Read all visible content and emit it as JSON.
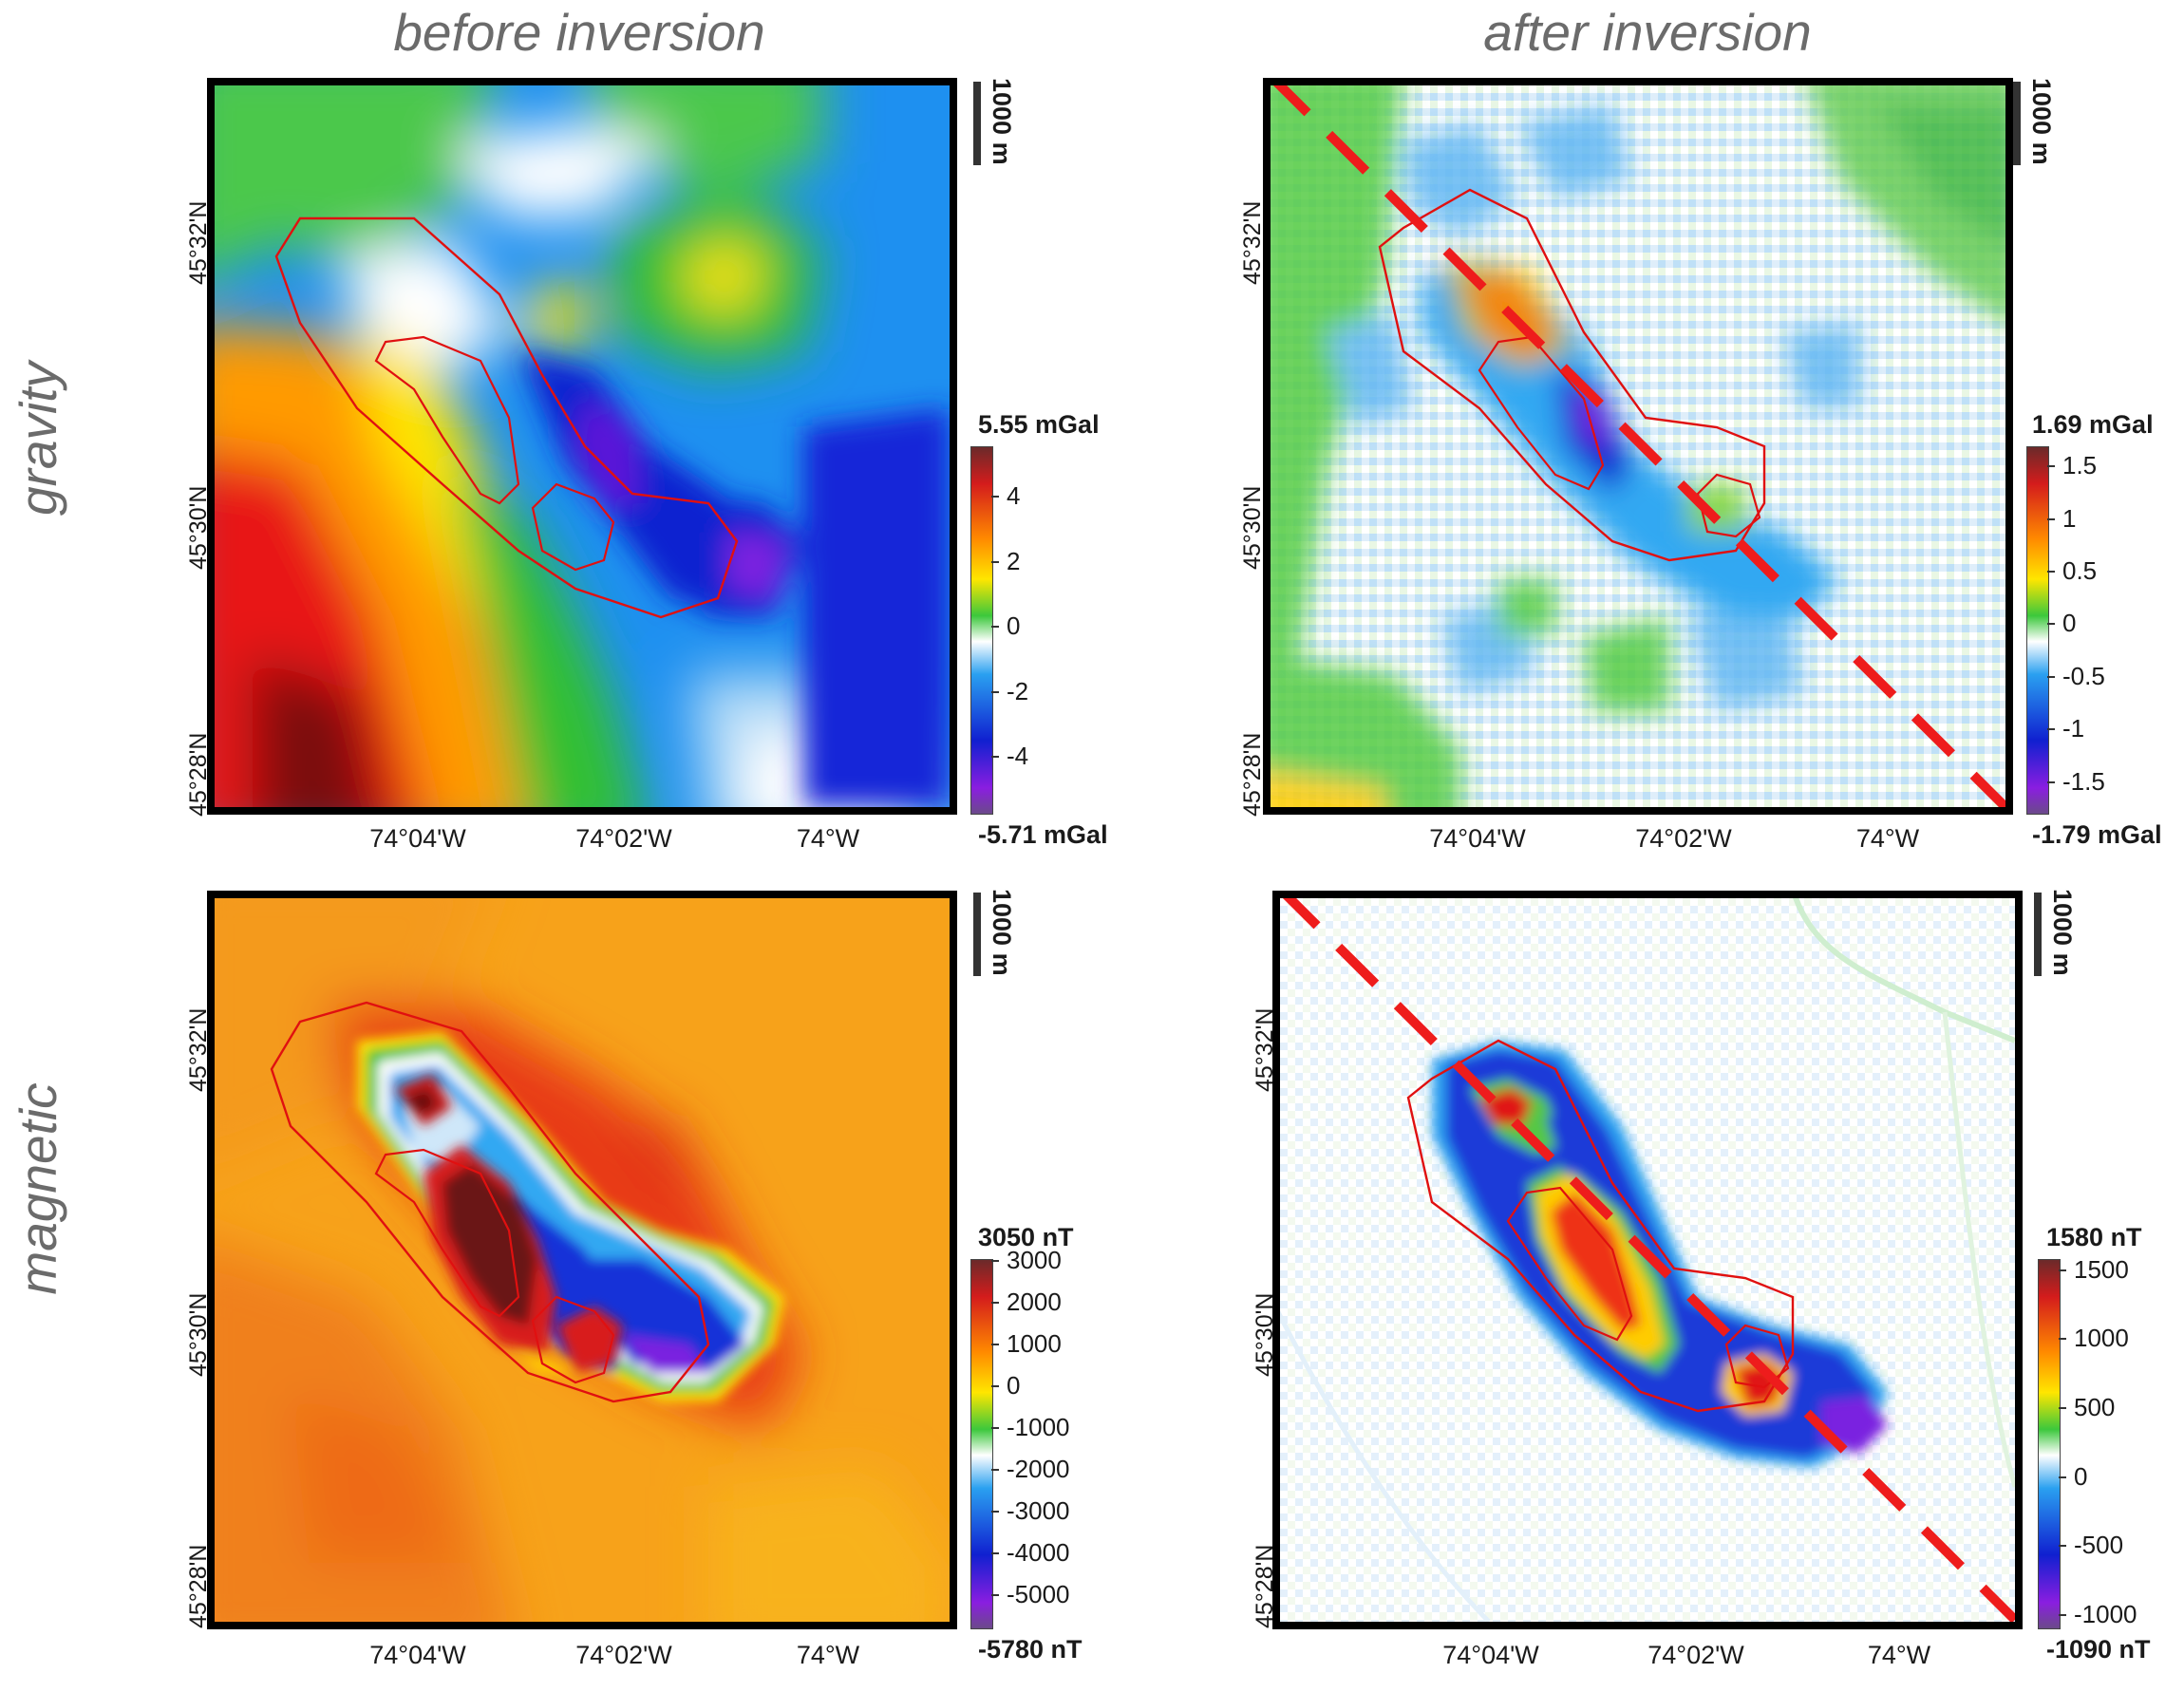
{
  "columns": [
    "before inversion",
    "after inversion"
  ],
  "rows": [
    "gravity",
    "magnetic"
  ],
  "scale_bar": "1000 m",
  "lat_labels": [
    "45°28'N",
    "45°30'N",
    "45°32'N"
  ],
  "lon_labels": [
    "74°04'W",
    "74°02'W",
    "74°W"
  ],
  "panels": [
    {
      "name": "gravity-before",
      "colorbar": {
        "max_label": "5.55 mGal",
        "min_label": "-5.71 mGal",
        "ticks": [
          "4",
          "2",
          "0",
          "-2",
          "-4"
        ],
        "tick_values": [
          4,
          2,
          0,
          -2,
          -4
        ],
        "range": [
          -5.71,
          5.55
        ]
      }
    },
    {
      "name": "gravity-after",
      "colorbar": {
        "max_label": "1.69 mGal",
        "min_label": "-1.79 mGal",
        "ticks": [
          "1.5",
          "1",
          "0.5",
          "0",
          "-0.5",
          "-1",
          "-1.5"
        ],
        "tick_values": [
          1.5,
          1,
          0.5,
          0,
          -0.5,
          -1,
          -1.5
        ],
        "range": [
          -1.79,
          1.69
        ]
      }
    },
    {
      "name": "magnetic-before",
      "colorbar": {
        "max_label": "3050 nT",
        "min_label": "-5780 nT",
        "ticks": [
          "3000",
          "2000",
          "1000",
          "0",
          "-1000",
          "-2000",
          "-3000",
          "-4000",
          "-5000"
        ],
        "tick_values": [
          3000,
          2000,
          1000,
          0,
          -1000,
          -2000,
          -3000,
          -4000,
          -5000
        ],
        "range": [
          -5780,
          3050
        ]
      }
    },
    {
      "name": "magnetic-after",
      "colorbar": {
        "max_label": "1580 nT",
        "min_label": "-1090 nT",
        "ticks": [
          "1500",
          "1000",
          "500",
          "0",
          "-500",
          "-1000"
        ],
        "tick_values": [
          1500,
          1000,
          500,
          0,
          -500,
          -1000
        ],
        "range": [
          -1090,
          1580
        ]
      }
    }
  ],
  "colors": {
    "colorbar_stops": [
      "#7a1010",
      "#d41c1c",
      "#ff8a00",
      "#ffe600",
      "#3cc83c",
      "#ffffff",
      "#2aa0f0",
      "#1020d0",
      "#8a1ee0",
      "#6b4a8a"
    ],
    "outline": "#e01010",
    "profile_line": "#ee1c1c"
  }
}
